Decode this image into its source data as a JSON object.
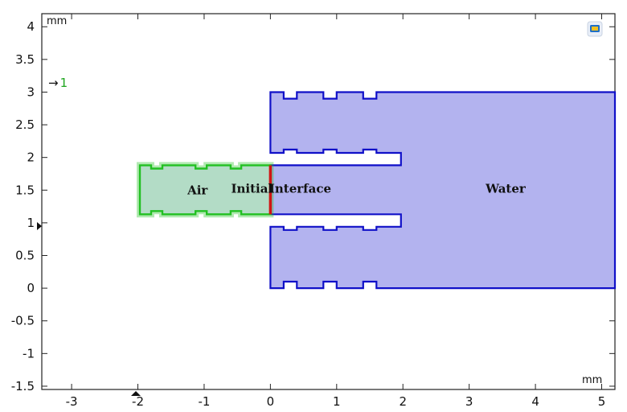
{
  "plot": {
    "x_unit": "mm",
    "y_unit": "mm",
    "xlim": [
      -3.45,
      5.2
    ],
    "ylim": [
      -1.55,
      4.2
    ],
    "x_ticks": [
      -3,
      -2,
      -1,
      0,
      1,
      2,
      3,
      4,
      5
    ],
    "y_ticks": [
      -1.5,
      -1,
      -0.5,
      0,
      0.5,
      1,
      1.5,
      2,
      2.5,
      3,
      3.5,
      4
    ]
  },
  "axis_marker": {
    "arrow": "→",
    "value": "1"
  },
  "labels": {
    "air": "Air",
    "initial": "Initial",
    "interface": "Interface",
    "water": "Water"
  },
  "colors": {
    "air_fill": "#b3dcc6",
    "air_edge": "#22c022",
    "water_fill": "#b3b3ef",
    "water_edge": "#1010c8",
    "interface": "#d01414",
    "frame": "#222222"
  },
  "shapes": {
    "air_region": [
      [
        -1.97,
        1.13
      ],
      [
        -1.97,
        1.88
      ],
      [
        -1.8,
        1.88
      ],
      [
        -1.8,
        1.83
      ],
      [
        -1.63,
        1.83
      ],
      [
        -1.63,
        1.88
      ],
      [
        -1.13,
        1.88
      ],
      [
        -1.13,
        1.83
      ],
      [
        -0.96,
        1.83
      ],
      [
        -0.96,
        1.88
      ],
      [
        -0.6,
        1.88
      ],
      [
        -0.6,
        1.83
      ],
      [
        -0.44,
        1.83
      ],
      [
        -0.44,
        1.88
      ],
      [
        0.0,
        1.88
      ],
      [
        0.0,
        1.13
      ],
      [
        -0.44,
        1.13
      ],
      [
        -0.44,
        1.18
      ],
      [
        -0.6,
        1.18
      ],
      [
        -0.6,
        1.13
      ],
      [
        -0.96,
        1.13
      ],
      [
        -0.96,
        1.18
      ],
      [
        -1.13,
        1.18
      ],
      [
        -1.13,
        1.13
      ],
      [
        -1.63,
        1.13
      ],
      [
        -1.63,
        1.18
      ],
      [
        -1.8,
        1.18
      ],
      [
        -1.8,
        1.13
      ]
    ],
    "water_region": [
      [
        0.0,
        3.0
      ],
      [
        0.0,
        2.07
      ],
      [
        0.2,
        2.07
      ],
      [
        0.2,
        2.12
      ],
      [
        0.4,
        2.12
      ],
      [
        0.4,
        2.07
      ],
      [
        0.8,
        2.07
      ],
      [
        0.8,
        2.12
      ],
      [
        1.0,
        2.12
      ],
      [
        1.0,
        2.07
      ],
      [
        1.4,
        2.07
      ],
      [
        1.4,
        2.12
      ],
      [
        1.6,
        2.12
      ],
      [
        1.6,
        2.07
      ],
      [
        1.97,
        2.07
      ],
      [
        1.97,
        1.88
      ],
      [
        0.0,
        1.88
      ],
      [
        0.0,
        1.13
      ],
      [
        1.97,
        1.13
      ],
      [
        1.97,
        0.94
      ],
      [
        1.6,
        0.94
      ],
      [
        1.6,
        0.89
      ],
      [
        1.4,
        0.89
      ],
      [
        1.4,
        0.94
      ],
      [
        1.0,
        0.94
      ],
      [
        1.0,
        0.89
      ],
      [
        0.8,
        0.89
      ],
      [
        0.8,
        0.94
      ],
      [
        0.4,
        0.94
      ],
      [
        0.4,
        0.89
      ],
      [
        0.2,
        0.89
      ],
      [
        0.2,
        0.94
      ],
      [
        0.0,
        0.94
      ],
      [
        0.0,
        0.0
      ],
      [
        0.2,
        0.0
      ],
      [
        0.2,
        0.1
      ],
      [
        0.4,
        0.1
      ],
      [
        0.4,
        0.0
      ],
      [
        0.8,
        0.0
      ],
      [
        0.8,
        0.1
      ],
      [
        1.0,
        0.1
      ],
      [
        1.0,
        0.0
      ],
      [
        1.4,
        0.0
      ],
      [
        1.4,
        0.1
      ],
      [
        1.6,
        0.1
      ],
      [
        1.6,
        0.0
      ],
      [
        5.2,
        0.0
      ],
      [
        5.2,
        3.0
      ],
      [
        1.6,
        3.0
      ],
      [
        1.6,
        2.9
      ],
      [
        1.4,
        2.9
      ],
      [
        1.4,
        3.0
      ],
      [
        1.0,
        3.0
      ],
      [
        1.0,
        2.9
      ],
      [
        0.8,
        2.9
      ],
      [
        0.8,
        3.0
      ],
      [
        0.4,
        3.0
      ],
      [
        0.4,
        2.9
      ],
      [
        0.2,
        2.9
      ],
      [
        0.2,
        3.0
      ]
    ],
    "interface_line": [
      [
        0.0,
        1.13
      ],
      [
        0.0,
        1.88
      ]
    ]
  },
  "label_points": {
    "air": [
      -1.1,
      1.5
    ],
    "initial": [
      -0.28,
      1.52
    ],
    "interface": [
      0.45,
      1.52
    ],
    "water": [
      3.55,
      1.52
    ]
  }
}
